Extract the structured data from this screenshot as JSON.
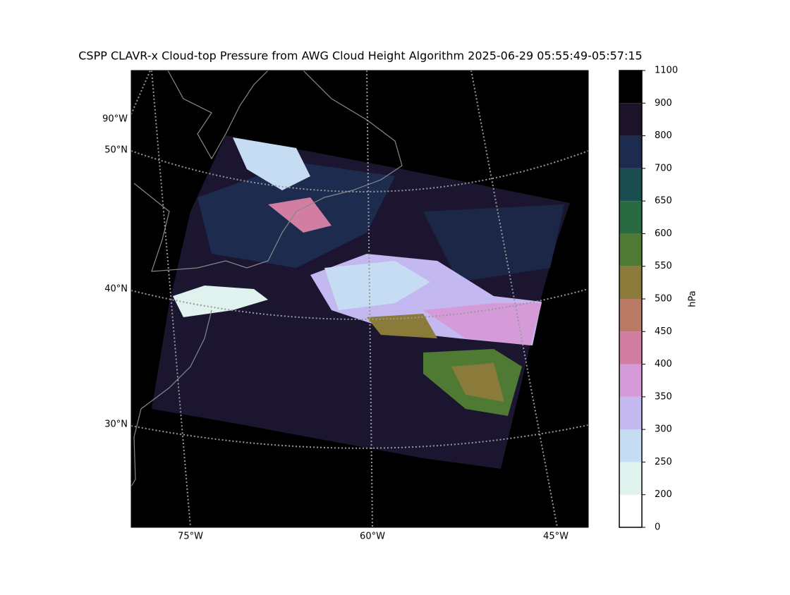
{
  "title": "CSPP CLAVR-x Cloud-top Pressure from AWG Cloud Height Algorithm 2025-06-29 05:55:49-05:57:15",
  "map": {
    "lat_labels": [
      "90°W",
      "50°N",
      "40°N",
      "30°N"
    ],
    "lon_labels": [
      "75°W",
      "60°W",
      "45°W"
    ]
  },
  "colorbar": {
    "label": "hPa",
    "ticks": [
      0,
      200,
      250,
      300,
      350,
      400,
      450,
      500,
      550,
      600,
      650,
      700,
      800,
      900,
      1100
    ],
    "colors": [
      "#ffffff",
      "#dff2ee",
      "#c6dcf2",
      "#c4b8f0",
      "#d59ad8",
      "#d27ea3",
      "#b97b65",
      "#8a7b3a",
      "#4f7a34",
      "#2a6a40",
      "#1a4d4f",
      "#1d2c4e",
      "#1c1328",
      "#000000"
    ]
  }
}
